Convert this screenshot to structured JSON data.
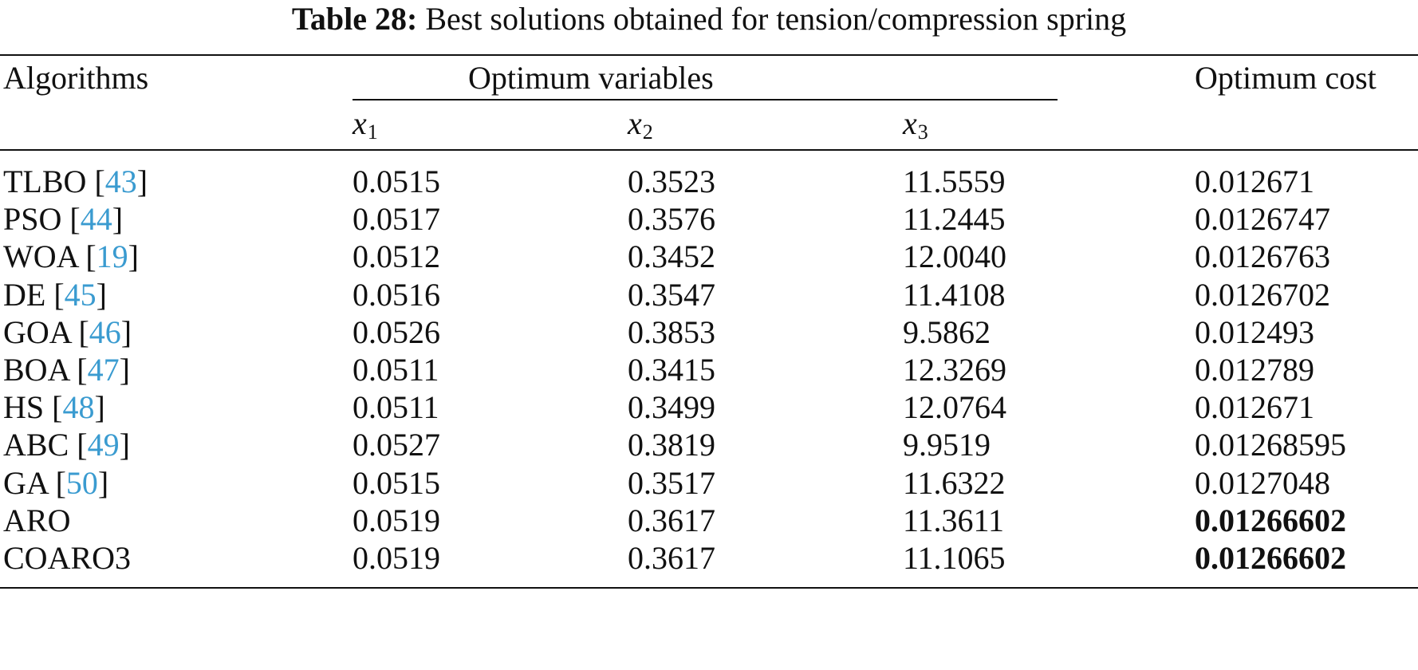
{
  "caption": {
    "label": "Table 28:",
    "text": "Best solutions obtained for tension/compression spring"
  },
  "header": {
    "algorithms": "Algorithms",
    "group": "Optimum variables",
    "cost": "Optimum cost",
    "vars": [
      {
        "sym": "x",
        "sub": "1"
      },
      {
        "sym": "x",
        "sub": "2"
      },
      {
        "sym": "x",
        "sub": "3"
      }
    ]
  },
  "rows": [
    {
      "name": "TLBO",
      "ref": "43",
      "x1": "0.0515",
      "x2": "0.3523",
      "x3": "11.5559",
      "cost": "0.012671",
      "best": false
    },
    {
      "name": "PSO",
      "ref": "44",
      "x1": "0.0517",
      "x2": "0.3576",
      "x3": "11.2445",
      "cost": "0.0126747",
      "best": false
    },
    {
      "name": "WOA",
      "ref": "19",
      "x1": "0.0512",
      "x2": "0.3452",
      "x3": "12.0040",
      "cost": "0.0126763",
      "best": false
    },
    {
      "name": "DE",
      "ref": "45",
      "x1": "0.0516",
      "x2": "0.3547",
      "x3": "11.4108",
      "cost": "0.0126702",
      "best": false
    },
    {
      "name": "GOA",
      "ref": "46",
      "x1": "0.0526",
      "x2": "0.3853",
      "x3": "9.5862",
      "cost": "0.012493",
      "best": false
    },
    {
      "name": "BOA",
      "ref": "47",
      "x1": "0.0511",
      "x2": "0.3415",
      "x3": "12.3269",
      "cost": "0.012789",
      "best": false
    },
    {
      "name": "HS",
      "ref": "48",
      "x1": "0.0511",
      "x2": "0.3499",
      "x3": "12.0764",
      "cost": "0.012671",
      "best": false
    },
    {
      "name": "ABC",
      "ref": "49",
      "x1": "0.0527",
      "x2": "0.3819",
      "x3": "9.9519",
      "cost": "0.01268595",
      "best": false
    },
    {
      "name": "GA",
      "ref": "50",
      "x1": "0.0515",
      "x2": "0.3517",
      "x3": "11.6322",
      "cost": "0.0127048",
      "best": false
    },
    {
      "name": "ARO",
      "ref": "",
      "x1": "0.0519",
      "x2": "0.3617",
      "x3": "11.3611",
      "cost": "0.01266602",
      "best": true
    },
    {
      "name": "COARO3",
      "ref": "",
      "x1": "0.0519",
      "x2": "0.3617",
      "x3": "11.1065",
      "cost": "0.01266602",
      "best": true
    }
  ]
}
